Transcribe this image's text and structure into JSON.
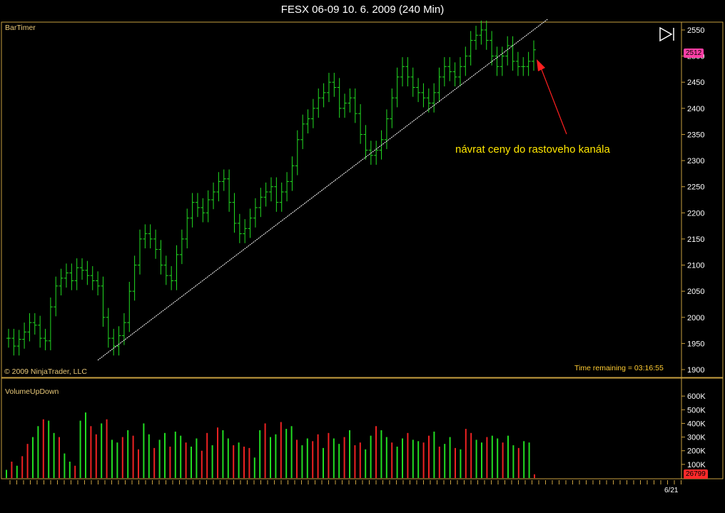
{
  "window": {
    "title": "FESX 06-09  10. 6. 2009 (240 Min)"
  },
  "price_panel": {
    "indicator_label": "BarTimer",
    "copyright": "© 2009 NinjaTrader, LLC",
    "time_remaining": "Time remaining = 03:16:55",
    "annotation": "návrat ceny do rastoveho kanála",
    "last_price_tag": "2512",
    "y_ticks": [
      "1900",
      "1950",
      "2000",
      "2050",
      "2100",
      "2150",
      "2200",
      "2250",
      "2300",
      "2350",
      "2400",
      "2450",
      "2500",
      "2550"
    ]
  },
  "volume_panel": {
    "indicator_label": "VolumeUpDown",
    "last_volume_tag": "26799",
    "y_ticks": [
      "100K",
      "200K",
      "300K",
      "400K",
      "500K",
      "600K"
    ]
  },
  "x_axis": {
    "date_label": "6/21"
  },
  "colors": {
    "up": "#22dd22",
    "down": "#ee2222",
    "frame": "#c8a040",
    "trendline": "#ffffff",
    "arrow": "#ff2020",
    "annotation": "#ffe600"
  },
  "icons": {
    "play_to_end": "play-end-icon"
  },
  "chart_data": [
    {
      "type": "line",
      "title": "FESX 06-09  10. 6. 2009 (240 Min)",
      "series": [
        {
          "values": [
            1960,
            1945,
            1958,
            1972,
            1990,
            1985,
            1960,
            1955,
            2020,
            2060,
            2075,
            2085,
            2070,
            2095,
            2090,
            2080,
            2070,
            2060,
            2000,
            1960,
            1945,
            1965,
            1990,
            2050,
            2100,
            2150,
            2160,
            2150,
            2130,
            2100,
            2080,
            2070,
            2120,
            2150,
            2190,
            2220,
            2210,
            2200,
            2225,
            2240,
            2260,
            2265,
            2220,
            2180,
            2160,
            2170,
            2190,
            2210,
            2230,
            2240,
            2250,
            2220,
            2240,
            2260,
            2290,
            2340,
            2370,
            2380,
            2400,
            2420,
            2430,
            2450,
            2440,
            2400,
            2410,
            2420,
            2390,
            2350,
            2320,
            2310,
            2320,
            2340,
            2380,
            2420,
            2460,
            2480,
            2460,
            2440,
            2430,
            2420,
            2410,
            2430,
            2460,
            2480,
            2470,
            2460,
            2480,
            2500,
            2530,
            2540,
            2550,
            2530,
            2500,
            2480,
            2500,
            2520,
            2490,
            2480,
            2480,
            2490,
            2512
          ]
        }
      ],
      "ylim": [
        1885,
        2565
      ],
      "annotation": "návrat ceny do rastoveho kanála",
      "trendline": {
        "x": [
          0,
          100
        ],
        "y": [
          1918,
          2520
        ]
      },
      "grid": false
    },
    {
      "type": "bar",
      "series": [
        {
          "name": "VolumeUpDown",
          "values": [
            60,
            120,
            90,
            160,
            250,
            300,
            380,
            430,
            420,
            330,
            300,
            180,
            120,
            90,
            420,
            480,
            380,
            320,
            400,
            430,
            280,
            260,
            300,
            350,
            310,
            210,
            400,
            320,
            220,
            280,
            330,
            230,
            340,
            310,
            260,
            230,
            290,
            200,
            330,
            240,
            370,
            350,
            290,
            240,
            260,
            230,
            220,
            150,
            350,
            400,
            300,
            320,
            410,
            360,
            380,
            280,
            240,
            290,
            270,
            320,
            220,
            330,
            290,
            250,
            300,
            350,
            240,
            260,
            210,
            310,
            380,
            350,
            300,
            260,
            230,
            290,
            330,
            280,
            270,
            260,
            310,
            340,
            230,
            250,
            300,
            220,
            210,
            360,
            330,
            280,
            260,
            300,
            310,
            290,
            260,
            310,
            240,
            220,
            270,
            260,
            27
          ]
        }
      ],
      "ylim": [
        0,
        700000
      ]
    }
  ]
}
